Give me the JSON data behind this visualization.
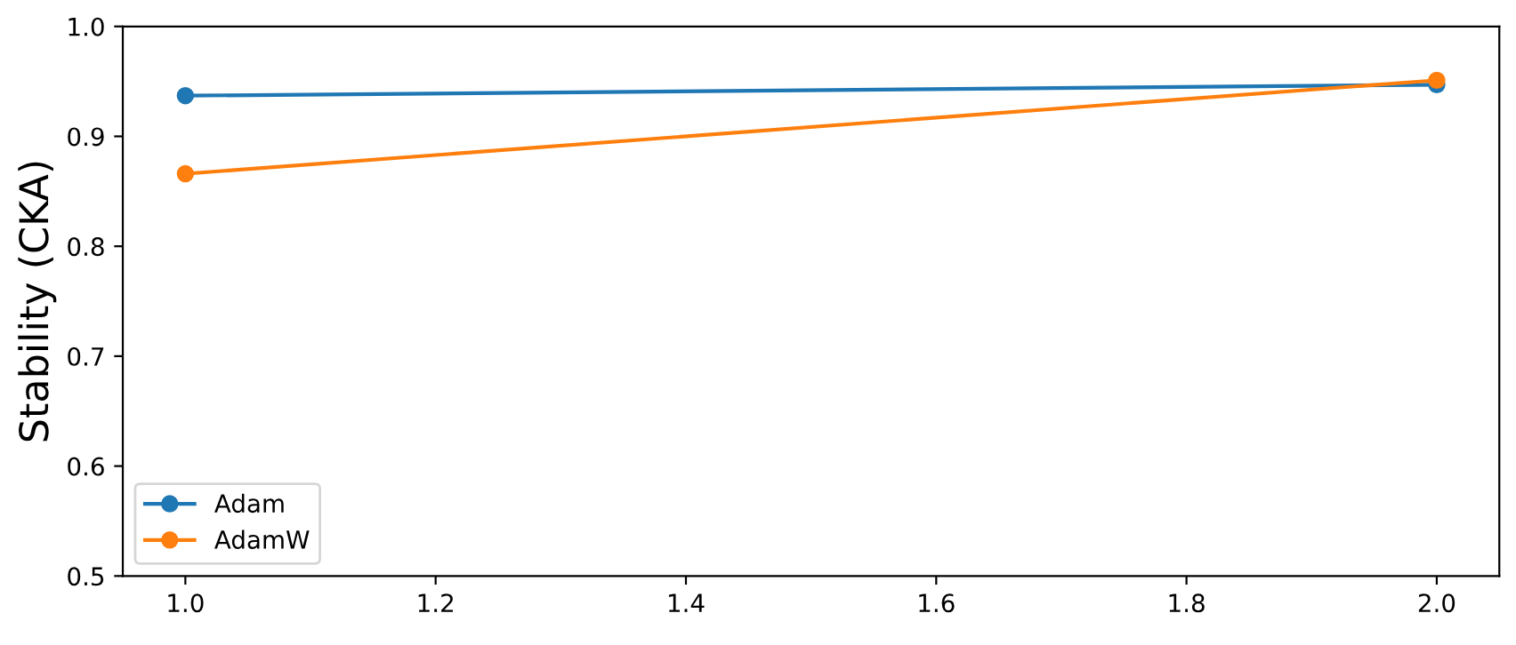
{
  "chart_data": {
    "type": "line",
    "ylabel": "Stability (CKA)",
    "x": [
      1.0,
      2.0
    ],
    "series": [
      {
        "name": "Adam",
        "color": "#1f77b4",
        "values": [
          0.937,
          0.947
        ]
      },
      {
        "name": "AdamW",
        "color": "#ff7f0e",
        "values": [
          0.866,
          0.951
        ]
      }
    ],
    "xlim": [
      0.95,
      2.05
    ],
    "xticks": [
      {
        "value": 1.0,
        "label": "1.0"
      },
      {
        "value": 1.2,
        "label": "1.2"
      },
      {
        "value": 1.4,
        "label": "1.4"
      },
      {
        "value": 1.6,
        "label": "1.6"
      },
      {
        "value": 1.8,
        "label": "1.8"
      },
      {
        "value": 2.0,
        "label": "2.0"
      }
    ],
    "ylim": [
      0.5,
      1.0
    ],
    "yticks": [
      {
        "value": 0.5,
        "label": "0.5"
      },
      {
        "value": 0.6,
        "label": "0.6"
      },
      {
        "value": 0.7,
        "label": "0.7"
      },
      {
        "value": 0.8,
        "label": "0.8"
      },
      {
        "value": 0.9,
        "label": "0.9"
      },
      {
        "value": 1.0,
        "label": "1.0"
      }
    ],
    "marker": "circle",
    "line_style": "solid",
    "legend": "bottom left",
    "grid": false
  }
}
